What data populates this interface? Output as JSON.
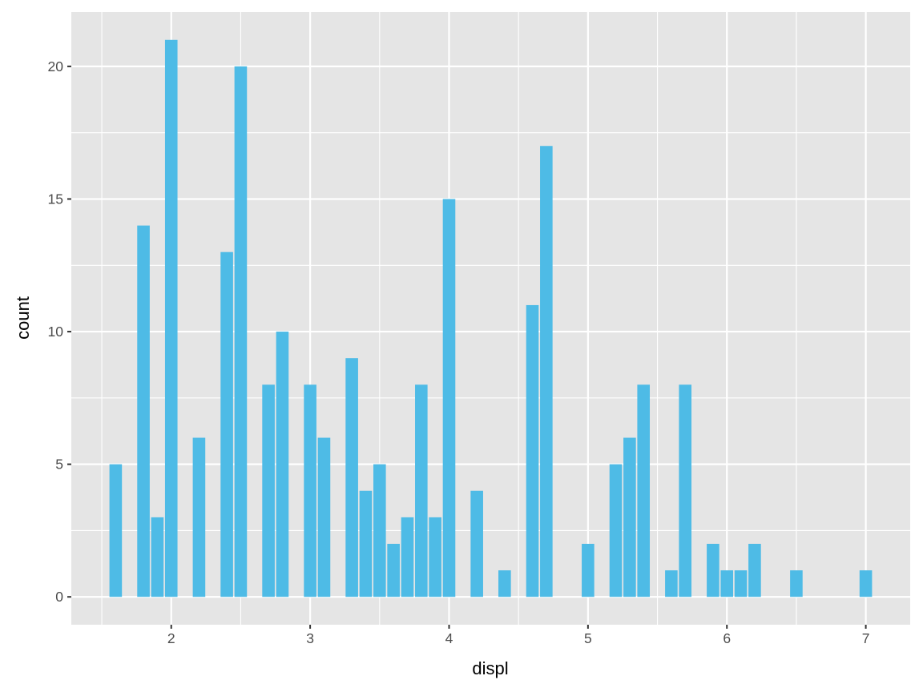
{
  "chart_data": {
    "type": "bar",
    "xlabel": "displ",
    "ylabel": "count",
    "x": [
      1.6,
      1.8,
      1.9,
      2.0,
      2.2,
      2.4,
      2.5,
      2.7,
      2.8,
      3.0,
      3.1,
      3.3,
      3.4,
      3.5,
      3.6,
      3.7,
      3.8,
      3.9,
      4.0,
      4.2,
      4.4,
      4.6,
      4.7,
      5.0,
      5.2,
      5.3,
      5.4,
      5.6,
      5.7,
      5.9,
      6.0,
      6.1,
      6.2,
      6.5,
      7.0
    ],
    "values": [
      5,
      14,
      3,
      21,
      6,
      13,
      20,
      8,
      10,
      8,
      6,
      9,
      4,
      5,
      2,
      3,
      8,
      3,
      15,
      4,
      1,
      11,
      17,
      2,
      5,
      6,
      8,
      1,
      8,
      2,
      1,
      1,
      2,
      1,
      1
    ],
    "xlim": [
      1.2805,
      7.3195
    ],
    "ylim": [
      -1.05,
      22.05
    ],
    "xticks": [
      "2",
      "3",
      "4",
      "5",
      "6",
      "7"
    ],
    "yticks": [
      "0",
      "5",
      "10",
      "15",
      "20"
    ],
    "grid": true,
    "bar_color": "#4EBBE6",
    "panel_color": "#E5E5E5"
  }
}
